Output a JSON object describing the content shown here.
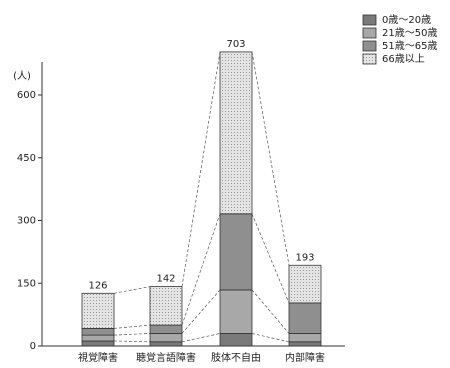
{
  "chart_data": {
    "type": "stacked-bar",
    "y_label": "(人)",
    "categories": [
      "視覚障害",
      "聴覚言語障害",
      "肢体不自由",
      "内部障害"
    ],
    "series": [
      {
        "name": "0歳～20歳",
        "color": "#7a7a7a",
        "values": [
          12,
          10,
          30,
          10
        ]
      },
      {
        "name": "21歳～50歳",
        "color": "#a8a8a8",
        "values": [
          14,
          20,
          104,
          20
        ]
      },
      {
        "name": "51歳～65歳",
        "color": "#8f8f8f",
        "values": [
          16,
          20,
          182,
          73
        ]
      },
      {
        "name": "66歳以上",
        "color": "#dcdcdc",
        "values": [
          84,
          92,
          387,
          90
        ]
      }
    ],
    "totals": [
      126,
      142,
      703,
      193
    ],
    "ylim": [
      0,
      700
    ],
    "yticks": [
      0,
      150,
      300,
      450,
      600
    ]
  }
}
